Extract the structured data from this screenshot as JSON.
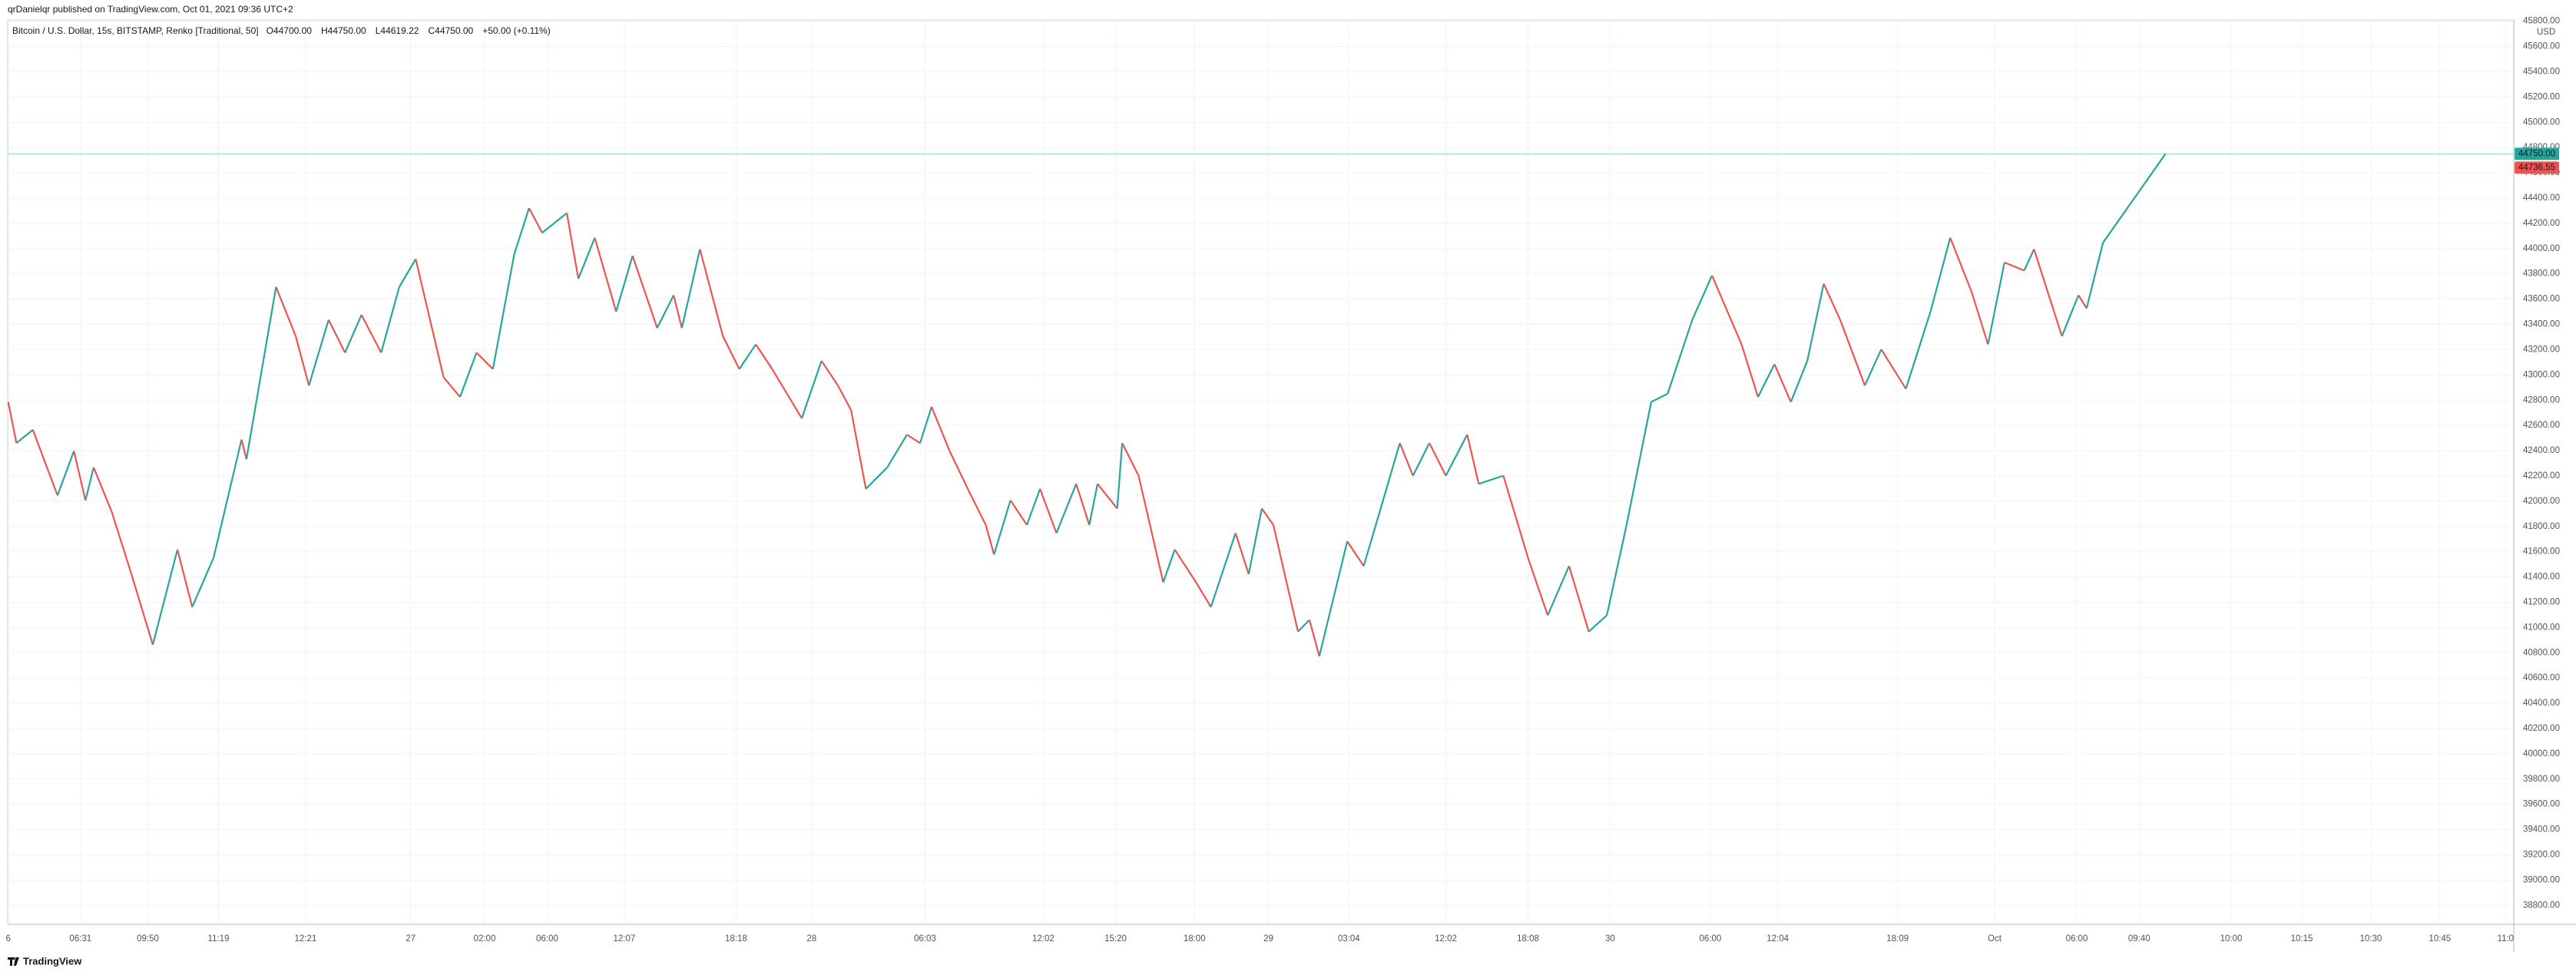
{
  "header": {
    "published": "qrDanielqr published on TradingView.com, Oct 01, 2021 09:36 UTC+2",
    "brand": "TradingView"
  },
  "chart_data": {
    "type": "renko-line",
    "legend": {
      "symbol": "Bitcoin / U.S. Dollar, 15s, BITSTAMP, Renko [Traditional, 50]",
      "ohlc": [
        {
          "label": "O",
          "value": "44700.00"
        },
        {
          "label": "H",
          "value": "44750.00"
        },
        {
          "label": "L",
          "value": "44619.22"
        },
        {
          "label": "C",
          "value": "44750.00"
        },
        {
          "label": "",
          "value": "+50.00 (+0.11%)"
        }
      ]
    },
    "currency": "USD",
    "up_color": "#26a69a",
    "down_color": "#ef5350",
    "grid": true,
    "xlim": [
      0,
      1530
    ],
    "ylim": [
      38650,
      45810
    ],
    "xticks": [
      {
        "value": 5,
        "label": "6"
      },
      {
        "value": 49,
        "label": "06:31"
      },
      {
        "value": 90,
        "label": "09:50"
      },
      {
        "value": 133,
        "label": "11:19"
      },
      {
        "value": 186,
        "label": "12:21"
      },
      {
        "value": 250,
        "label": "27"
      },
      {
        "value": 295,
        "label": "02:00"
      },
      {
        "value": 333,
        "label": "06:00"
      },
      {
        "value": 380,
        "label": "12:07"
      },
      {
        "value": 448,
        "label": "18:18"
      },
      {
        "value": 494,
        "label": "28"
      },
      {
        "value": 563,
        "label": "06:03"
      },
      {
        "value": 635,
        "label": "12:02"
      },
      {
        "value": 679,
        "label": "15:20"
      },
      {
        "value": 727,
        "label": "18:00"
      },
      {
        "value": 772,
        "label": "29"
      },
      {
        "value": 821,
        "label": "03:04"
      },
      {
        "value": 880,
        "label": "12:02"
      },
      {
        "value": 930,
        "label": "18:08"
      },
      {
        "value": 980,
        "label": "30"
      },
      {
        "value": 1041,
        "label": "06:00"
      },
      {
        "value": 1082,
        "label": "12:04"
      },
      {
        "value": 1155,
        "label": "18:09"
      },
      {
        "value": 1214,
        "label": "Oct"
      },
      {
        "value": 1264,
        "label": "06:00"
      },
      {
        "value": 1302,
        "label": "09:40"
      },
      {
        "value": 1358,
        "label": "10:00"
      },
      {
        "value": 1401,
        "label": "10:15"
      },
      {
        "value": 1443,
        "label": "10:30"
      },
      {
        "value": 1485,
        "label": "10:45"
      },
      {
        "value": 1525,
        "label": "11:0"
      }
    ],
    "yticks": [
      {
        "value": 38800,
        "label": "38800.00"
      },
      {
        "value": 39000,
        "label": "39000.00"
      },
      {
        "value": 39200,
        "label": "39200.00"
      },
      {
        "value": 39400,
        "label": "39400.00"
      },
      {
        "value": 39600,
        "label": "39600.00"
      },
      {
        "value": 39800,
        "label": "39800.00"
      },
      {
        "value": 40000,
        "label": "40000.00"
      },
      {
        "value": 40200,
        "label": "40200.00"
      },
      {
        "value": 40400,
        "label": "40400.00"
      },
      {
        "value": 40600,
        "label": "40600.00"
      },
      {
        "value": 40800,
        "label": "40800.00"
      },
      {
        "value": 41000,
        "label": "41000.00"
      },
      {
        "value": 41200,
        "label": "41200.00"
      },
      {
        "value": 41400,
        "label": "41400.00"
      },
      {
        "value": 41600,
        "label": "41600.00"
      },
      {
        "value": 41800,
        "label": "41800.00"
      },
      {
        "value": 42000,
        "label": "42000.00"
      },
      {
        "value": 42200,
        "label": "42200.00"
      },
      {
        "value": 42400,
        "label": "42400.00"
      },
      {
        "value": 42600,
        "label": "42600.00"
      },
      {
        "value": 42800,
        "label": "42800.00"
      },
      {
        "value": 43000,
        "label": "43000.00"
      },
      {
        "value": 43200,
        "label": "43200.00"
      },
      {
        "value": 43400,
        "label": "43400.00"
      },
      {
        "value": 43600,
        "label": "43600.00"
      },
      {
        "value": 43800,
        "label": "43800.00"
      },
      {
        "value": 44000,
        "label": "44000.00"
      },
      {
        "value": 44200,
        "label": "44200.00"
      },
      {
        "value": 44400,
        "label": "44400.00"
      },
      {
        "value": 44600,
        "label": "44600.00"
      },
      {
        "value": 44800,
        "label": "44800.00"
      },
      {
        "value": 45000,
        "label": "45000.00"
      },
      {
        "value": 45200,
        "label": "45200.00"
      },
      {
        "value": 45400,
        "label": "45400.00"
      },
      {
        "value": 45600,
        "label": "45600.00"
      },
      {
        "value": 45800,
        "label": "45800.00"
      }
    ],
    "price_tags": [
      {
        "value": 44750,
        "label": "44750.00",
        "color": "#26a69a"
      },
      {
        "value": 44736.55,
        "label": "44736.55",
        "color": "#ef5350"
      }
    ],
    "x": [
      5,
      10,
      20,
      35,
      45,
      52,
      57,
      68,
      80,
      93,
      108,
      117,
      130,
      147,
      150,
      168,
      180,
      188,
      200,
      210,
      220,
      232,
      243,
      253,
      270,
      280,
      290,
      300,
      313,
      322,
      330,
      345,
      352,
      362,
      375,
      385,
      400,
      410,
      415,
      426,
      440,
      450,
      460,
      470,
      488,
      500,
      510,
      518,
      527,
      540,
      552,
      560,
      567,
      578,
      590,
      600,
      605,
      615,
      625,
      633,
      643,
      655,
      663,
      668,
      680,
      683,
      693,
      708,
      715,
      728,
      737,
      752,
      760,
      768,
      775,
      790,
      797,
      803,
      820,
      830,
      838,
      852,
      860,
      870,
      880,
      893,
      900,
      915,
      930,
      942,
      955,
      967,
      978,
      990,
      1005,
      1015,
      1030,
      1042,
      1060,
      1070,
      1080,
      1090,
      1100,
      1110,
      1120,
      1135,
      1145,
      1160,
      1175,
      1187,
      1200,
      1210,
      1220,
      1232,
      1238,
      1255,
      1265,
      1270,
      1280,
      1318
    ],
    "series": [
      {
        "name": "BTCUSD",
        "values": [
          42786,
          42460,
          42565,
          42046,
          42397,
          42007,
          42267,
          41916,
          41422,
          40864,
          41617,
          41162,
          41552,
          42488,
          42332,
          43696,
          43306,
          42916,
          43436,
          43176,
          43475,
          43176,
          43696,
          43917,
          42981,
          42825,
          43176,
          43046,
          43956,
          44320,
          44125,
          44281,
          43761,
          44086,
          43501,
          43943,
          43371,
          43631,
          43371,
          43995,
          43306,
          43046,
          43241,
          43046,
          42656,
          43111,
          42916,
          42721,
          42098,
          42267,
          42527,
          42460,
          42747,
          42397,
          42072,
          41812,
          41578,
          42007,
          41812,
          42098,
          41747,
          42137,
          41812,
          42137,
          41942,
          42460,
          42202,
          41357,
          41617,
          41357,
          41162,
          41747,
          41422,
          41942,
          41812,
          40968,
          41060,
          40773,
          41682,
          41487,
          41838,
          42460,
          42202,
          42460,
          42202,
          42527,
          42137,
          42202,
          41552,
          41097,
          41487,
          40968,
          41097,
          41812,
          42786,
          42851,
          43436,
          43787,
          43241,
          42825,
          43085,
          42786,
          43111,
          43722,
          43436,
          42916,
          43202,
          42890,
          43501,
          44086,
          43657,
          43241,
          43890,
          43826,
          43995,
          43306,
          43631,
          43527,
          44047,
          44750
        ]
      }
    ]
  }
}
